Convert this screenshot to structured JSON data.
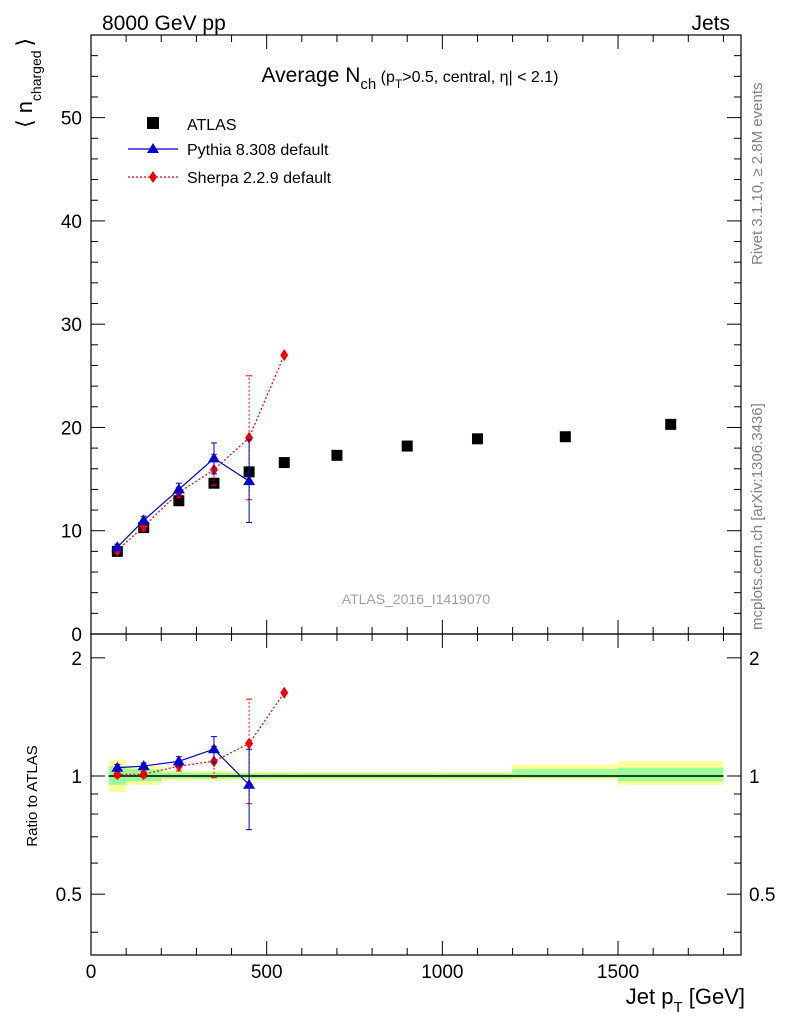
{
  "header": {
    "left": "8000 GeV pp",
    "right": "Jets"
  },
  "side_labels": {
    "rivet": "Rivet 3.1.10, ≥ 2.8M events",
    "mcplots": "mcplots.cern.ch [arXiv:1306.3436]"
  },
  "watermark": "ATLAS_2016_I1419070",
  "colors": {
    "atlas": "#000000",
    "pythia": "#0000cc",
    "sherpa": "#ee0000",
    "band_inner": "#99ff99",
    "band_outer": "#ffff99"
  },
  "chart_data": [
    {
      "type": "scatter",
      "panel": "main",
      "title": "Average N",
      "title_sub": "ch",
      "title_tail": " (p",
      "title_tail_sub": "T",
      "title_tail2": ">0.5, central, η| < 2.1)",
      "ylabel": "⟨ n",
      "ylabel_sub": "charged",
      "ylabel_close": "⟩",
      "xlim": [
        0,
        1850
      ],
      "ylim": [
        0,
        58
      ],
      "yticks": [
        0,
        10,
        20,
        30,
        40,
        50
      ],
      "ytick_labels": [
        "0",
        "10",
        "20",
        "30",
        "40",
        "50"
      ],
      "legend": [
        "ATLAS",
        "Pythia 8.308 default",
        "Sherpa 2.2.9 default"
      ],
      "legend_position": "top-left",
      "series": [
        {
          "name": "ATLAS",
          "marker": "square",
          "x": [
            75,
            150,
            250,
            350,
            450,
            550,
            700,
            900,
            1100,
            1350,
            1650
          ],
          "y": [
            8.0,
            10.3,
            12.9,
            14.6,
            15.7,
            16.6,
            17.3,
            18.2,
            18.9,
            19.1,
            20.3
          ],
          "xerr": [
            25,
            50,
            50,
            50,
            50,
            50,
            100,
            100,
            100,
            150,
            150
          ]
        },
        {
          "name": "Pythia 8.308 default",
          "marker": "triangle",
          "line": "solid",
          "x": [
            75,
            150,
            250,
            350,
            450
          ],
          "y": [
            8.4,
            11.0,
            14.0,
            17.0,
            14.8
          ],
          "yerr": [
            0.3,
            0.4,
            0.6,
            1.5,
            4.0
          ]
        },
        {
          "name": "Sherpa 2.2.9 default",
          "marker": "diamond",
          "line": "dotted",
          "x": [
            75,
            150,
            250,
            350,
            450,
            550
          ],
          "y": [
            8.1,
            10.4,
            13.7,
            15.9,
            19.0,
            27.0
          ],
          "yerr": [
            0.3,
            0.4,
            0.5,
            1.5,
            6.0,
            0
          ]
        }
      ]
    },
    {
      "type": "scatter",
      "panel": "ratio",
      "ylabel": "Ratio to ATLAS",
      "xlabel": "Jet p",
      "xlabel_sub": "T",
      "xlabel_tail": " [GeV]",
      "xlim": [
        0,
        1850
      ],
      "ylim": [
        0.35,
        2.3
      ],
      "xticks": [
        0,
        500,
        1000,
        1500
      ],
      "xtick_labels": [
        "0",
        "500",
        "1000",
        "1500"
      ],
      "yticks": [
        0.5,
        1,
        2
      ],
      "ytick_labels": [
        "0.5",
        "1",
        "2"
      ],
      "reference_line": 1,
      "bands": [
        {
          "x": [
            50,
            100
          ],
          "inner": [
            0.95,
            1.06
          ],
          "outer": [
            0.91,
            1.1
          ]
        },
        {
          "x": [
            100,
            200
          ],
          "inner": [
            0.97,
            1.04
          ],
          "outer": [
            0.95,
            1.06
          ]
        },
        {
          "x": [
            200,
            300
          ],
          "inner": [
            0.985,
            1.02
          ],
          "outer": [
            0.975,
            1.03
          ]
        },
        {
          "x": [
            300,
            400
          ],
          "inner": [
            0.985,
            1.02
          ],
          "outer": [
            0.975,
            1.03
          ]
        },
        {
          "x": [
            400,
            500
          ],
          "inner": [
            0.985,
            1.015
          ],
          "outer": [
            0.975,
            1.025
          ]
        },
        {
          "x": [
            500,
            600
          ],
          "inner": [
            0.985,
            1.015
          ],
          "outer": [
            0.975,
            1.025
          ]
        },
        {
          "x": [
            600,
            800
          ],
          "inner": [
            0.985,
            1.015
          ],
          "outer": [
            0.975,
            1.025
          ]
        },
        {
          "x": [
            800,
            1000
          ],
          "inner": [
            0.985,
            1.015
          ],
          "outer": [
            0.975,
            1.025
          ]
        },
        {
          "x": [
            1000,
            1200
          ],
          "inner": [
            0.985,
            1.015
          ],
          "outer": [
            0.975,
            1.025
          ]
        },
        {
          "x": [
            1200,
            1500
          ],
          "inner": [
            0.99,
            1.04
          ],
          "outer": [
            0.98,
            1.07
          ]
        },
        {
          "x": [
            1500,
            1800
          ],
          "inner": [
            0.97,
            1.05
          ],
          "outer": [
            0.95,
            1.09
          ]
        }
      ],
      "series": [
        {
          "name": "Pythia 8.308 default",
          "x": [
            75,
            150,
            250,
            350,
            450
          ],
          "y": [
            1.05,
            1.06,
            1.09,
            1.17,
            0.95
          ],
          "yerr": [
            0.02,
            0.02,
            0.03,
            0.09,
            0.22
          ]
        },
        {
          "name": "Sherpa 2.2.9 default",
          "x": [
            75,
            150,
            250,
            350,
            450,
            550
          ],
          "y": [
            1.01,
            1.01,
            1.06,
            1.09,
            1.21,
            1.63
          ],
          "yerr": [
            0.02,
            0.02,
            0.03,
            0.1,
            0.36,
            0
          ]
        }
      ]
    }
  ]
}
